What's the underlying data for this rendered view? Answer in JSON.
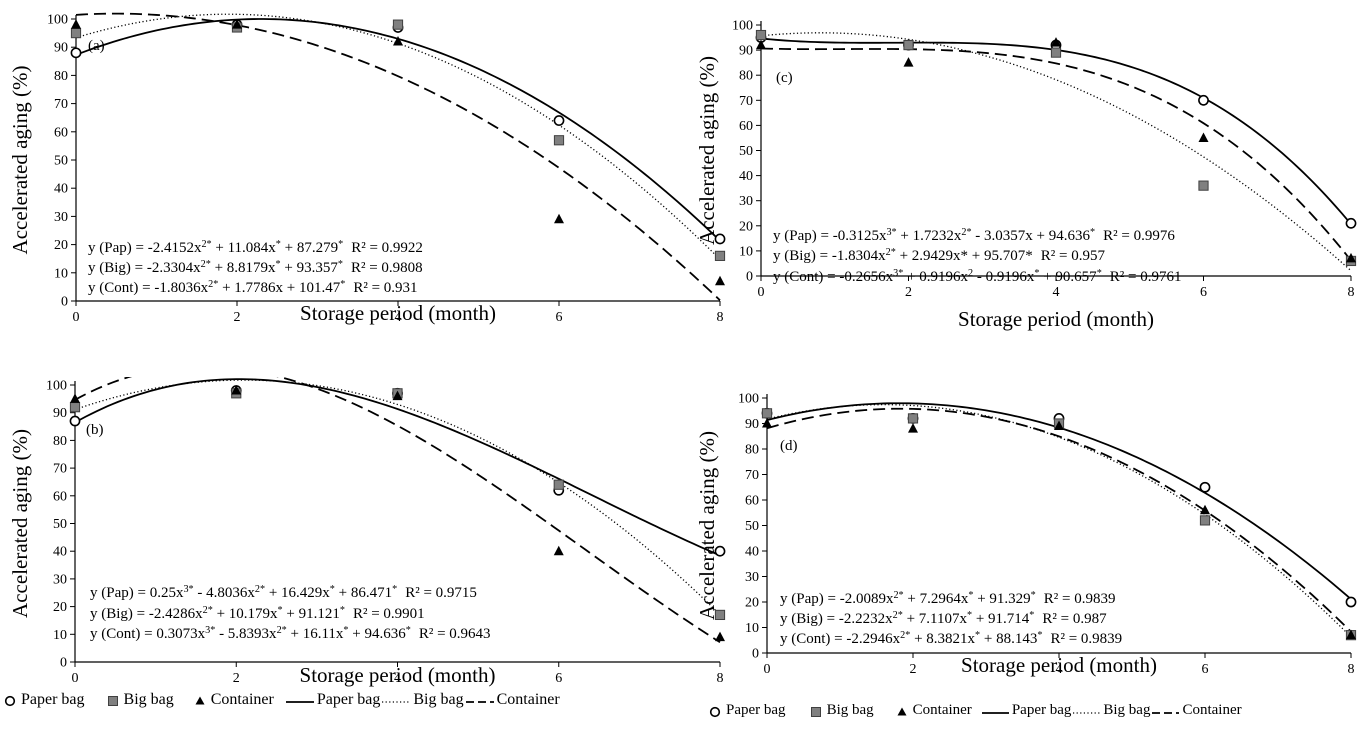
{
  "chart_data": [
    {
      "type": "scatter",
      "panel_label": "(a)",
      "xlabel": "Storage period (month)",
      "ylabel": "Accelerated aging (%)",
      "xlim": [
        0,
        8
      ],
      "ylim": [
        0,
        100
      ],
      "xticks": [
        0,
        2,
        4,
        6,
        8
      ],
      "yticks": [
        0,
        10,
        20,
        30,
        40,
        50,
        60,
        70,
        80,
        90,
        100
      ],
      "x": [
        0,
        2,
        4,
        6,
        8
      ],
      "series": [
        {
          "name": "Paper bag",
          "marker": "circle",
          "line": "solid",
          "values": [
            88,
            98,
            97,
            64,
            22
          ],
          "coef": [
            87.279,
            11.084,
            -2.4152,
            0
          ]
        },
        {
          "name": "Big bag",
          "marker": "square",
          "line": "dotted",
          "values": [
            95,
            97,
            98,
            57,
            16
          ],
          "coef": [
            93.357,
            8.8179,
            -2.3304,
            0
          ]
        },
        {
          "name": "Container",
          "marker": "triangle",
          "line": "dashed",
          "values": [
            98,
            98,
            92,
            29,
            7
          ],
          "coef": [
            101.47,
            1.7786,
            -1.8036,
            0
          ]
        }
      ],
      "equations": [
        {
          "body": "y (Pap) = -2.4152x",
          "sup1": "2*",
          "mid1": " + 11.084x",
          "sup2": "*",
          "tail": " + 87.279",
          "sup3": "*",
          "r2": "R² = 0.9922"
        },
        {
          "body": "y (Big) = -2.3304x",
          "sup1": "2*",
          "mid1": " + 8.8179x",
          "sup2": "*",
          "tail": " + 93.357",
          "sup3": "*",
          "r2": "R² = 0.9808"
        },
        {
          "body": "y (Cont) = -1.8036x",
          "sup1": "2*",
          "mid1": " + 1.7786x + 101.47",
          "sup2": "*",
          "tail": "",
          "sup3": "",
          "r2": "R² = 0.931"
        }
      ]
    },
    {
      "type": "scatter",
      "panel_label": "(c)",
      "xlabel": "Storage period (month)",
      "ylabel": "Accelerated aging (%)",
      "xlim": [
        0,
        8
      ],
      "ylim": [
        0,
        100
      ],
      "xticks": [
        0,
        2,
        4,
        6,
        8
      ],
      "yticks": [
        0,
        10,
        20,
        30,
        40,
        50,
        60,
        70,
        80,
        90,
        100
      ],
      "x": [
        0,
        2,
        4,
        6,
        8
      ],
      "series": [
        {
          "name": "Paper bag",
          "marker": "circle",
          "line": "solid",
          "values": [
            95,
            92,
            92,
            70,
            21
          ],
          "coef": [
            94.636,
            -3.0357,
            1.7232,
            -0.3125
          ]
        },
        {
          "name": "Big bag",
          "marker": "square",
          "line": "dotted",
          "values": [
            96,
            92,
            89,
            36,
            6
          ],
          "coef": [
            95.707,
            2.9429,
            -1.8304,
            0
          ]
        },
        {
          "name": "Container",
          "marker": "triangle",
          "line": "dashed",
          "values": [
            92,
            85,
            93,
            55,
            7
          ],
          "coef": [
            90.657,
            -0.9196,
            0.9196,
            -0.2656
          ]
        }
      ],
      "equations": [
        {
          "body": "y (Pap) = -0.3125x",
          "sup1": "3*",
          "mid1": " + 1.7232x",
          "sup2": "2*",
          "tail": " - 3.0357x + 94.636",
          "sup3": "*",
          "r2": "R² = 0.9976"
        },
        {
          "body": "y (Big) = -1.8304x",
          "sup1": "2*",
          "mid1": " + 2.9429x* + 95.707*",
          "sup2": "",
          "tail": "",
          "sup3": "",
          "r2": "R² = 0.957"
        },
        {
          "body": "y (Cont) =  -0.2656x",
          "sup1": "3*",
          "mid1": " + 0.9196x",
          "sup2": "2",
          "tail": " - 0.9196x",
          "sup3": "*",
          "tail2": " + 90.657",
          "sup4": "*",
          "r2": "R² = 0.9761"
        }
      ]
    },
    {
      "type": "scatter",
      "panel_label": "(b)",
      "xlabel": "Storage period (month)",
      "ylabel": "Accelerated aging (%)",
      "xlim": [
        0,
        8
      ],
      "ylim": [
        0,
        100
      ],
      "xticks": [
        0,
        2,
        4,
        6,
        8
      ],
      "yticks": [
        0,
        10,
        20,
        30,
        40,
        50,
        60,
        70,
        80,
        90,
        100
      ],
      "x": [
        0,
        2,
        4,
        6,
        8
      ],
      "series": [
        {
          "name": "Paper bag",
          "marker": "circle",
          "line": "solid",
          "values": [
            87,
            98,
            97,
            62,
            40
          ],
          "coef": [
            86.471,
            16.429,
            -4.8036,
            0.25
          ]
        },
        {
          "name": "Big bag",
          "marker": "square",
          "line": "dotted",
          "values": [
            92,
            97,
            97,
            64,
            17
          ],
          "coef": [
            91.121,
            10.179,
            -2.4286,
            0
          ]
        },
        {
          "name": "Container",
          "marker": "triangle",
          "line": "dashed",
          "values": [
            95,
            98,
            96,
            40,
            9
          ],
          "coef": [
            94.636,
            16.11,
            -5.8393,
            0.3073
          ]
        }
      ],
      "equations": [
        {
          "body": "y (Pap) = 0.25x",
          "sup1": "3*",
          "mid1": " - 4.8036x",
          "sup2": "2*",
          "tail": " + 16.429x",
          "sup3": "*",
          "tail2": " + 86.471",
          "sup4": "*",
          "r2": "R² = 0.9715"
        },
        {
          "body": "y (Big) = -2.4286x",
          "sup1": "2*",
          "mid1": " + 10.179x",
          "sup2": "*",
          "tail": " + 91.121",
          "sup3": "*",
          "r2": "R² = 0.9901"
        },
        {
          "body": "y (Cont) = 0.3073x",
          "sup1": "3*",
          "mid1": " - 5.8393x",
          "sup2": "2*",
          "tail": " + 16.11x",
          "sup3": "*",
          "tail2": " + 94.636",
          "sup4": "*",
          "r2": "R² = 0.9643"
        }
      ]
    },
    {
      "type": "scatter",
      "panel_label": "(d)",
      "xlabel": "Storage period (month)",
      "ylabel": "Accelerated aging (%)",
      "xlim": [
        0,
        8
      ],
      "ylim": [
        0,
        100
      ],
      "xticks": [
        0,
        2,
        4,
        6,
        8
      ],
      "yticks": [
        0,
        10,
        20,
        30,
        40,
        50,
        60,
        70,
        80,
        90,
        100
      ],
      "x": [
        0,
        2,
        4,
        6,
        8
      ],
      "series": [
        {
          "name": "Paper bag",
          "marker": "circle",
          "line": "solid",
          "values": [
            94,
            92,
            92,
            65,
            20
          ],
          "coef": [
            91.329,
            7.2964,
            -2.0089,
            0
          ]
        },
        {
          "name": "Big bag",
          "marker": "square",
          "line": "dotted",
          "values": [
            94,
            92,
            90,
            52,
            7
          ],
          "coef": [
            91.714,
            7.1107,
            -2.2232,
            0
          ]
        },
        {
          "name": "Container",
          "marker": "triangle",
          "line": "dashed",
          "values": [
            90,
            88,
            89,
            56,
            7
          ],
          "coef": [
            88.143,
            8.3821,
            -2.2946,
            0
          ]
        }
      ],
      "equations": [
        {
          "body": "y (Pap) = -2.0089x",
          "sup1": "2*",
          "mid1": " + 7.2964x",
          "sup2": "*",
          "tail": " + 91.329",
          "sup3": "*",
          "r2": "R² = 0.9839"
        },
        {
          "body": "y (Big) = -2.2232x",
          "sup1": "2*",
          "mid1": " + 7.1107x",
          "sup2": "*",
          "tail": " + 91.714",
          "sup3": "*",
          "r2": "R² = 0.987"
        },
        {
          "body": "y (Cont) = -2.2946x",
          "sup1": "2*",
          "mid1": " + 8.3821x",
          "sup2": "*",
          "tail": " + 88.143",
          "sup3": "*",
          "r2": "R² = 0.9839"
        }
      ]
    }
  ],
  "legend": {
    "items": [
      {
        "label": "Paper bag",
        "kind": "marker",
        "marker": "circle"
      },
      {
        "label": "Big bag",
        "kind": "marker",
        "marker": "square"
      },
      {
        "label": "Container",
        "kind": "marker",
        "marker": "triangle"
      },
      {
        "label": "Paper bag",
        "kind": "line",
        "line": "solid"
      },
      {
        "label": "Big bag",
        "kind": "line",
        "line": "dotted"
      },
      {
        "label": "Container",
        "kind": "line",
        "line": "dashed"
      }
    ]
  },
  "colors": {
    "axis": "#000000",
    "line": "#000000",
    "square_fill": "#808080",
    "square_stroke": "#404040",
    "circle_fill": "#ffffff"
  }
}
